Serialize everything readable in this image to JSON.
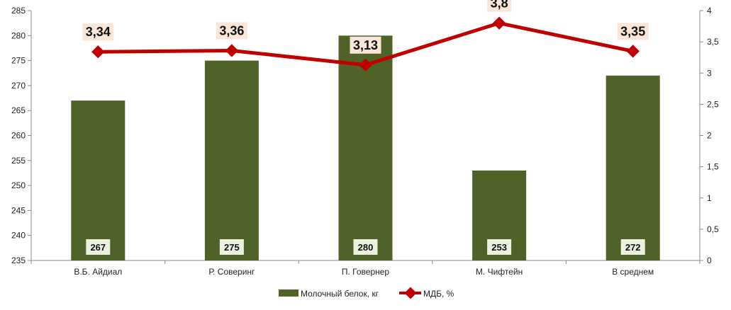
{
  "chart_data": {
    "type": "bar",
    "categories": [
      "В.Б. Айдиал",
      "Р. Соверинг",
      "П. Говернер",
      "М. Чифтейн",
      "В среднем"
    ],
    "series": [
      {
        "name": "Молочный белок, кг",
        "type": "bar",
        "axis": "left",
        "values": [
          267,
          275,
          280,
          253,
          272
        ],
        "value_labels": [
          "267",
          "275",
          "280",
          "253",
          "272"
        ],
        "color": "#4f6228"
      },
      {
        "name": "МДБ, %",
        "type": "line",
        "axis": "right",
        "values": [
          3.34,
          3.36,
          3.13,
          3.8,
          3.35
        ],
        "value_labels": [
          "3,34",
          "3,36",
          "3,13",
          "3,8",
          "3,35"
        ],
        "color": "#c00000"
      }
    ],
    "y_left": {
      "min": 235,
      "max": 285,
      "step": 5,
      "tick_labels": [
        "235",
        "240",
        "245",
        "250",
        "255",
        "260",
        "265",
        "270",
        "275",
        "280",
        "285"
      ]
    },
    "y_right": {
      "min": 0,
      "max": 4,
      "step": 0.5,
      "tick_labels": [
        "0",
        "0,5",
        "1",
        "1,5",
        "2",
        "2,5",
        "3",
        "3,5",
        "4"
      ]
    },
    "grid": false,
    "legend_position": "bottom",
    "title": "",
    "xlabel": "",
    "ylabel": ""
  }
}
